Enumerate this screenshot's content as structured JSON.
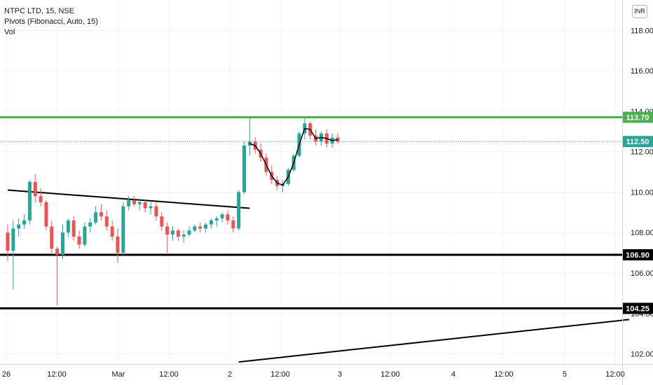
{
  "legend": {
    "symbol": "NTPC LTD, 15, NSE",
    "pivots": "Pivots (Fibonacci, Auto, 15)",
    "vol": "Vol"
  },
  "currency_button": "INR",
  "colors": {
    "up": "#26a69a",
    "down": "#ef5350",
    "resistance": "#4caf50",
    "trendline": "#000000",
    "last_price": "#26a69a"
  },
  "chart_data": {
    "type": "candlestick",
    "ylim": [
      101.5,
      119.5
    ],
    "y_ticks": [
      102,
      104,
      106,
      108,
      110,
      112,
      114,
      116,
      118
    ],
    "y_tick_labels": [
      "102.00",
      "104.00",
      "106.00",
      "108.00",
      "110.00",
      "112.00",
      "114.00",
      "116.00",
      "118.00"
    ],
    "x_tick_labels": [
      "26",
      "12:00",
      "Mar",
      "12:00",
      "2",
      "12:00",
      "3",
      "12:00",
      "4",
      "12:00",
      "5",
      "12:00"
    ],
    "price_tags": [
      {
        "label": "113.70",
        "value": 113.7,
        "color": "#4caf50"
      },
      {
        "label": "112.50",
        "value": 112.5,
        "color": "#26a69a"
      },
      {
        "label": "106.90",
        "value": 106.9,
        "color": "#000000"
      },
      {
        "label": "104.25",
        "value": 104.25,
        "color": "#000000"
      }
    ],
    "horizontal_lines": [
      {
        "value": 113.7,
        "color": "#4caf50"
      },
      {
        "value": 106.9,
        "color": "#000000"
      },
      {
        "value": 104.25,
        "color": "#000000"
      }
    ],
    "last_price": 112.5,
    "trendlines": [
      {
        "from": [
          0,
          110.1
        ],
        "to": [
          44,
          109.2
        ]
      },
      {
        "from": [
          42,
          101.6
        ],
        "to": [
          113,
          103.7
        ]
      }
    ],
    "candles": [
      [
        108.0,
        108.4,
        106.6,
        107.1
      ],
      [
        107.1,
        108.6,
        105.2,
        108.2
      ],
      [
        108.2,
        108.7,
        107.8,
        108.4
      ],
      [
        108.4,
        108.9,
        108.2,
        108.6
      ],
      [
        108.6,
        110.6,
        108.4,
        110.5
      ],
      [
        110.5,
        110.9,
        109.5,
        109.8
      ],
      [
        109.8,
        110.2,
        109.3,
        109.5
      ],
      [
        109.5,
        109.6,
        108.1,
        108.3
      ],
      [
        108.3,
        108.6,
        107.0,
        107.2
      ],
      [
        107.2,
        107.3,
        104.4,
        106.9
      ],
      [
        106.9,
        108.4,
        106.7,
        108.0
      ],
      [
        108.0,
        108.7,
        107.8,
        108.6
      ],
      [
        108.6,
        108.8,
        107.6,
        107.8
      ],
      [
        107.8,
        108.1,
        107.2,
        107.4
      ],
      [
        107.4,
        108.5,
        107.3,
        108.3
      ],
      [
        108.3,
        108.7,
        108.0,
        108.5
      ],
      [
        108.5,
        109.3,
        108.4,
        109.0
      ],
      [
        109.0,
        109.4,
        108.6,
        108.8
      ],
      [
        108.8,
        109.1,
        108.1,
        108.3
      ],
      [
        108.3,
        108.6,
        107.6,
        107.8
      ],
      [
        107.8,
        108.2,
        106.5,
        107.0
      ],
      [
        107.0,
        109.5,
        106.9,
        109.3
      ],
      [
        109.3,
        109.8,
        109.1,
        109.6
      ],
      [
        109.6,
        109.8,
        109.3,
        109.4
      ],
      [
        109.4,
        109.7,
        109.1,
        109.5
      ],
      [
        109.5,
        109.6,
        109.0,
        109.2
      ],
      [
        109.2,
        109.5,
        108.9,
        109.3
      ],
      [
        109.3,
        109.5,
        108.6,
        108.8
      ],
      [
        108.8,
        109.0,
        108.1,
        108.3
      ],
      [
        108.3,
        108.5,
        107.0,
        107.9
      ],
      [
        107.9,
        108.3,
        107.6,
        108.1
      ],
      [
        108.1,
        108.2,
        107.6,
        107.8
      ],
      [
        107.8,
        108.1,
        107.5,
        107.9
      ],
      [
        107.9,
        108.3,
        107.8,
        108.1
      ],
      [
        108.1,
        108.4,
        108.0,
        108.3
      ],
      [
        108.3,
        108.5,
        108.0,
        108.2
      ],
      [
        108.2,
        108.5,
        108.0,
        108.4
      ],
      [
        108.4,
        108.7,
        108.2,
        108.6
      ],
      [
        108.6,
        108.8,
        108.3,
        108.7
      ],
      [
        108.7,
        109.0,
        108.5,
        108.9
      ],
      [
        108.9,
        109.1,
        108.4,
        108.6
      ],
      [
        108.6,
        108.8,
        108.0,
        108.2
      ],
      [
        108.2,
        110.1,
        108.1,
        110.0
      ],
      [
        110.0,
        112.5,
        109.9,
        112.3
      ],
      [
        112.3,
        113.7,
        111.8,
        112.5
      ],
      [
        112.5,
        112.7,
        111.9,
        112.1
      ],
      [
        112.1,
        112.4,
        111.5,
        111.7
      ],
      [
        111.7,
        111.9,
        110.8,
        111.0
      ],
      [
        111.0,
        111.3,
        110.4,
        110.6
      ],
      [
        110.6,
        110.8,
        110.1,
        110.3
      ],
      [
        110.3,
        110.6,
        110.0,
        110.4
      ],
      [
        110.4,
        111.2,
        110.3,
        111.1
      ],
      [
        111.1,
        111.9,
        111.0,
        111.8
      ],
      [
        111.8,
        113.0,
        111.7,
        112.9
      ],
      [
        112.9,
        113.7,
        112.6,
        113.4
      ],
      [
        113.4,
        113.5,
        112.6,
        112.8
      ],
      [
        112.8,
        113.1,
        112.3,
        112.5
      ],
      [
        112.5,
        113.0,
        112.3,
        112.9
      ],
      [
        112.9,
        113.1,
        112.2,
        112.4
      ],
      [
        112.4,
        112.9,
        112.2,
        112.7
      ],
      [
        112.7,
        112.9,
        112.4,
        112.5
      ]
    ]
  }
}
